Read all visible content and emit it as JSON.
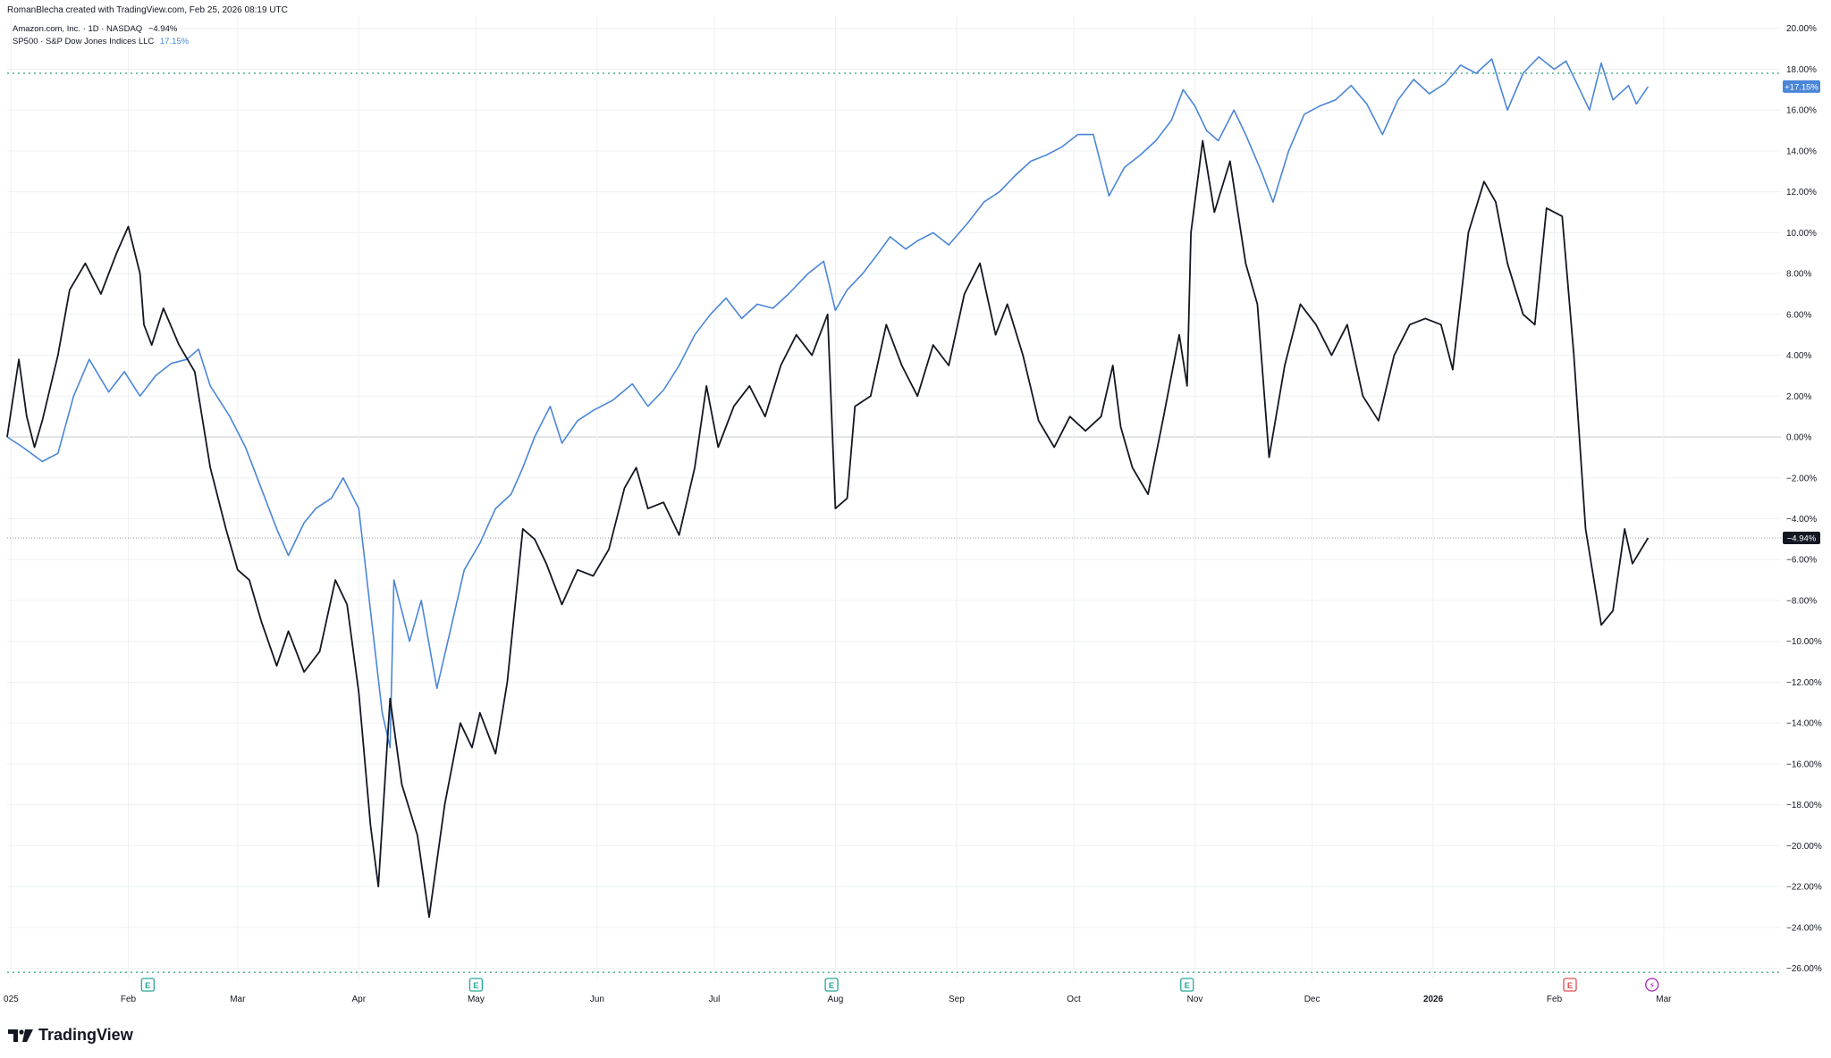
{
  "header": {
    "attribution": "RomanBlecha created with TradingView.com, Feb 25, 2026 08:19 UTC"
  },
  "legend": {
    "amzn_label": "Amazon.com, Inc. · 1D · NASDAQ",
    "amzn_value": "−4.94%",
    "spx_label": "SP500 · S&P Dow Jones Indices LLC",
    "spx_value": "17.15%"
  },
  "branding": {
    "name": "TradingView"
  },
  "colors": {
    "amzn": "#131722",
    "spx": "#4a86d8",
    "grid": "#eef0f3",
    "zero": "#c5c8ce",
    "level": "#27a26e",
    "earnings_past": "#26a69a",
    "earnings_future": "#e04c54",
    "dividend": "#9c27b0"
  },
  "chart_data": {
    "type": "line",
    "y_unit": "%",
    "ylim": [
      -26.5,
      20.6
    ],
    "yticks": [
      "20.00%",
      "18.00%",
      "16.00%",
      "14.00%",
      "12.00%",
      "10.00%",
      "8.00%",
      "6.00%",
      "4.00%",
      "2.00%",
      "0.00%",
      "−2.00%",
      "−4.00%",
      "−6.00%",
      "−8.00%",
      "−10.00%",
      "−12.00%",
      "−14.00%",
      "−16.00%",
      "−18.00%",
      "−20.00%",
      "−22.00%",
      "−24.00%",
      "−26.00%"
    ],
    "ytick_values": [
      20,
      18,
      16,
      14,
      12,
      10,
      8,
      6,
      4,
      2,
      0,
      -2,
      -4,
      -6,
      -8,
      -10,
      -12,
      -14,
      -16,
      -18,
      -20,
      -22,
      -24,
      -26
    ],
    "x_labels": [
      {
        "label": "025",
        "date": "2025-01-02"
      },
      {
        "label": "Feb",
        "date": "2025-02-01"
      },
      {
        "label": "Mar",
        "date": "2025-03-01"
      },
      {
        "label": "Apr",
        "date": "2025-04-01"
      },
      {
        "label": "May",
        "date": "2025-05-01"
      },
      {
        "label": "Jun",
        "date": "2025-06-01"
      },
      {
        "label": "Jul",
        "date": "2025-07-01"
      },
      {
        "label": "Aug",
        "date": "2025-08-01"
      },
      {
        "label": "Sep",
        "date": "2025-09-01"
      },
      {
        "label": "Oct",
        "date": "2025-10-01"
      },
      {
        "label": "Nov",
        "date": "2025-11-01"
      },
      {
        "label": "Dec",
        "date": "2025-12-01"
      },
      {
        "label": "2026",
        "date": "2026-01-01"
      },
      {
        "label": "Feb",
        "date": "2026-02-01"
      },
      {
        "label": "Mar",
        "date": "2026-03-01"
      }
    ],
    "x_range": [
      "2025-01-01",
      "2026-03-31"
    ],
    "grid": true,
    "level_lines": [
      17.8,
      -26.2
    ],
    "markers": [
      {
        "date": "2025-02-06",
        "type": "earnings",
        "label": "E"
      },
      {
        "date": "2025-05-01",
        "type": "earnings",
        "label": "E"
      },
      {
        "date": "2025-07-31",
        "type": "earnings",
        "label": "E"
      },
      {
        "date": "2025-10-30",
        "type": "earnings",
        "label": "E"
      },
      {
        "date": "2026-02-05",
        "type": "earnings",
        "label": "E"
      },
      {
        "date": "2026-02-26",
        "type": "dividend",
        "label": "⚡"
      }
    ],
    "series": [
      {
        "name": "SP500",
        "last_label": "+17.15%",
        "points": [
          [
            "2025-01-01",
            0
          ],
          [
            "2025-01-05",
            -0.5
          ],
          [
            "2025-01-10",
            -1.2
          ],
          [
            "2025-01-14",
            -0.8
          ],
          [
            "2025-01-18",
            2.0
          ],
          [
            "2025-01-22",
            3.8
          ],
          [
            "2025-01-27",
            2.2
          ],
          [
            "2025-01-31",
            3.2
          ],
          [
            "2025-02-04",
            2.0
          ],
          [
            "2025-02-08",
            3.0
          ],
          [
            "2025-02-12",
            3.6
          ],
          [
            "2025-02-16",
            3.8
          ],
          [
            "2025-02-19",
            4.3
          ],
          [
            "2025-02-22",
            2.5
          ],
          [
            "2025-02-27",
            1.0
          ],
          [
            "2025-03-03",
            -0.5
          ],
          [
            "2025-03-07",
            -2.5
          ],
          [
            "2025-03-11",
            -4.5
          ],
          [
            "2025-03-14",
            -5.8
          ],
          [
            "2025-03-18",
            -4.2
          ],
          [
            "2025-03-21",
            -3.5
          ],
          [
            "2025-03-25",
            -3.0
          ],
          [
            "2025-03-28",
            -2.0
          ],
          [
            "2025-04-01",
            -3.5
          ],
          [
            "2025-04-04",
            -8.5
          ],
          [
            "2025-04-07",
            -13.5
          ],
          [
            "2025-04-09",
            -15.2
          ],
          [
            "2025-04-10",
            -7.0
          ],
          [
            "2025-04-14",
            -10.0
          ],
          [
            "2025-04-17",
            -8.0
          ],
          [
            "2025-04-21",
            -12.3
          ],
          [
            "2025-04-25",
            -9.0
          ],
          [
            "2025-04-28",
            -6.5
          ],
          [
            "2025-05-02",
            -5.2
          ],
          [
            "2025-05-06",
            -3.5
          ],
          [
            "2025-05-10",
            -2.8
          ],
          [
            "2025-05-13",
            -1.5
          ],
          [
            "2025-05-16",
            0.0
          ],
          [
            "2025-05-20",
            1.5
          ],
          [
            "2025-05-23",
            -0.3
          ],
          [
            "2025-05-27",
            0.8
          ],
          [
            "2025-05-31",
            1.3
          ],
          [
            "2025-06-05",
            1.8
          ],
          [
            "2025-06-10",
            2.6
          ],
          [
            "2025-06-14",
            1.5
          ],
          [
            "2025-06-18",
            2.3
          ],
          [
            "2025-06-22",
            3.5
          ],
          [
            "2025-06-26",
            5.0
          ],
          [
            "2025-06-30",
            6.0
          ],
          [
            "2025-07-04",
            6.8
          ],
          [
            "2025-07-08",
            5.8
          ],
          [
            "2025-07-12",
            6.5
          ],
          [
            "2025-07-16",
            6.3
          ],
          [
            "2025-07-20",
            7.0
          ],
          [
            "2025-07-25",
            8.0
          ],
          [
            "2025-07-29",
            8.6
          ],
          [
            "2025-08-01",
            6.2
          ],
          [
            "2025-08-04",
            7.2
          ],
          [
            "2025-08-08",
            8.0
          ],
          [
            "2025-08-12",
            9.0
          ],
          [
            "2025-08-15",
            9.8
          ],
          [
            "2025-08-19",
            9.2
          ],
          [
            "2025-08-22",
            9.6
          ],
          [
            "2025-08-26",
            10.0
          ],
          [
            "2025-08-30",
            9.4
          ],
          [
            "2025-09-04",
            10.5
          ],
          [
            "2025-09-08",
            11.5
          ],
          [
            "2025-09-12",
            12.0
          ],
          [
            "2025-09-16",
            12.8
          ],
          [
            "2025-09-20",
            13.5
          ],
          [
            "2025-09-24",
            13.8
          ],
          [
            "2025-09-28",
            14.2
          ],
          [
            "2025-10-02",
            14.8
          ],
          [
            "2025-10-06",
            14.8
          ],
          [
            "2025-10-10",
            11.8
          ],
          [
            "2025-10-14",
            13.2
          ],
          [
            "2025-10-18",
            13.8
          ],
          [
            "2025-10-22",
            14.5
          ],
          [
            "2025-10-26",
            15.5
          ],
          [
            "2025-10-29",
            17.0
          ],
          [
            "2025-11-01",
            16.2
          ],
          [
            "2025-11-04",
            15.0
          ],
          [
            "2025-11-07",
            14.5
          ],
          [
            "2025-11-11",
            16.0
          ],
          [
            "2025-11-14",
            14.8
          ],
          [
            "2025-11-18",
            13.0
          ],
          [
            "2025-11-21",
            11.5
          ],
          [
            "2025-11-25",
            14.0
          ],
          [
            "2025-11-29",
            15.8
          ],
          [
            "2025-12-03",
            16.2
          ],
          [
            "2025-12-07",
            16.5
          ],
          [
            "2025-12-11",
            17.2
          ],
          [
            "2025-12-15",
            16.3
          ],
          [
            "2025-12-19",
            14.8
          ],
          [
            "2025-12-23",
            16.5
          ],
          [
            "2025-12-27",
            17.5
          ],
          [
            "2025-12-31",
            16.8
          ],
          [
            "2026-01-04",
            17.3
          ],
          [
            "2026-01-08",
            18.2
          ],
          [
            "2026-01-12",
            17.8
          ],
          [
            "2026-01-16",
            18.5
          ],
          [
            "2026-01-20",
            16.0
          ],
          [
            "2026-01-24",
            17.8
          ],
          [
            "2026-01-28",
            18.6
          ],
          [
            "2026-02-01",
            18.0
          ],
          [
            "2026-02-04",
            18.4
          ],
          [
            "2026-02-07",
            17.2
          ],
          [
            "2026-02-10",
            16.0
          ],
          [
            "2026-02-13",
            18.3
          ],
          [
            "2026-02-16",
            16.5
          ],
          [
            "2026-02-20",
            17.2
          ],
          [
            "2026-02-22",
            16.3
          ],
          [
            "2026-02-25",
            17.15
          ]
        ]
      },
      {
        "name": "Amazon.com, Inc.",
        "last_label": "−4.94%",
        "points": [
          [
            "2025-01-01",
            0
          ],
          [
            "2025-01-04",
            3.8
          ],
          [
            "2025-01-06",
            1.0
          ],
          [
            "2025-01-08",
            -0.5
          ],
          [
            "2025-01-10",
            0.8
          ],
          [
            "2025-01-14",
            4.0
          ],
          [
            "2025-01-17",
            7.2
          ],
          [
            "2025-01-21",
            8.5
          ],
          [
            "2025-01-25",
            7.0
          ],
          [
            "2025-01-29",
            9.0
          ],
          [
            "2025-02-01",
            10.3
          ],
          [
            "2025-02-04",
            8.0
          ],
          [
            "2025-02-05",
            5.5
          ],
          [
            "2025-02-07",
            4.5
          ],
          [
            "2025-02-10",
            6.3
          ],
          [
            "2025-02-14",
            4.5
          ],
          [
            "2025-02-18",
            3.2
          ],
          [
            "2025-02-22",
            -1.5
          ],
          [
            "2025-02-26",
            -4.5
          ],
          [
            "2025-03-01",
            -6.5
          ],
          [
            "2025-03-04",
            -7.0
          ],
          [
            "2025-03-07",
            -9.0
          ],
          [
            "2025-03-11",
            -11.2
          ],
          [
            "2025-03-14",
            -9.5
          ],
          [
            "2025-03-18",
            -11.5
          ],
          [
            "2025-03-22",
            -10.5
          ],
          [
            "2025-03-26",
            -7.0
          ],
          [
            "2025-03-29",
            -8.2
          ],
          [
            "2025-04-01",
            -12.5
          ],
          [
            "2025-04-04",
            -19.0
          ],
          [
            "2025-04-06",
            -22.0
          ],
          [
            "2025-04-09",
            -12.8
          ],
          [
            "2025-04-12",
            -17.0
          ],
          [
            "2025-04-16",
            -19.5
          ],
          [
            "2025-04-19",
            -23.5
          ],
          [
            "2025-04-23",
            -18.0
          ],
          [
            "2025-04-27",
            -14.0
          ],
          [
            "2025-04-30",
            -15.2
          ],
          [
            "2025-05-02",
            -13.5
          ],
          [
            "2025-05-06",
            -15.5
          ],
          [
            "2025-05-09",
            -12.0
          ],
          [
            "2025-05-13",
            -4.5
          ],
          [
            "2025-05-16",
            -5.0
          ],
          [
            "2025-05-19",
            -6.2
          ],
          [
            "2025-05-23",
            -8.2
          ],
          [
            "2025-05-27",
            -6.5
          ],
          [
            "2025-05-31",
            -6.8
          ],
          [
            "2025-06-04",
            -5.5
          ],
          [
            "2025-06-08",
            -2.5
          ],
          [
            "2025-06-11",
            -1.5
          ],
          [
            "2025-06-14",
            -3.5
          ],
          [
            "2025-06-18",
            -3.2
          ],
          [
            "2025-06-22",
            -4.8
          ],
          [
            "2025-06-26",
            -1.5
          ],
          [
            "2025-06-29",
            2.5
          ],
          [
            "2025-07-02",
            -0.5
          ],
          [
            "2025-07-06",
            1.5
          ],
          [
            "2025-07-10",
            2.5
          ],
          [
            "2025-07-14",
            1.0
          ],
          [
            "2025-07-18",
            3.5
          ],
          [
            "2025-07-22",
            5.0
          ],
          [
            "2025-07-26",
            4.0
          ],
          [
            "2025-07-30",
            6.0
          ],
          [
            "2025-08-01",
            -3.5
          ],
          [
            "2025-08-04",
            -3.0
          ],
          [
            "2025-08-06",
            1.5
          ],
          [
            "2025-08-10",
            2.0
          ],
          [
            "2025-08-14",
            5.5
          ],
          [
            "2025-08-18",
            3.5
          ],
          [
            "2025-08-22",
            2.0
          ],
          [
            "2025-08-26",
            4.5
          ],
          [
            "2025-08-30",
            3.5
          ],
          [
            "2025-09-03",
            7.0
          ],
          [
            "2025-09-07",
            8.5
          ],
          [
            "2025-09-11",
            5.0
          ],
          [
            "2025-09-14",
            6.5
          ],
          [
            "2025-09-18",
            4.0
          ],
          [
            "2025-09-22",
            0.8
          ],
          [
            "2025-09-26",
            -0.5
          ],
          [
            "2025-09-30",
            1.0
          ],
          [
            "2025-10-04",
            0.3
          ],
          [
            "2025-10-08",
            1.0
          ],
          [
            "2025-10-11",
            3.5
          ],
          [
            "2025-10-13",
            0.5
          ],
          [
            "2025-10-16",
            -1.5
          ],
          [
            "2025-10-20",
            -2.8
          ],
          [
            "2025-10-24",
            1.0
          ],
          [
            "2025-10-28",
            5.0
          ],
          [
            "2025-10-30",
            2.5
          ],
          [
            "2025-10-31",
            10.0
          ],
          [
            "2025-11-03",
            14.5
          ],
          [
            "2025-11-06",
            11.0
          ],
          [
            "2025-11-10",
            13.5
          ],
          [
            "2025-11-14",
            8.5
          ],
          [
            "2025-11-17",
            6.5
          ],
          [
            "2025-11-20",
            -1.0
          ],
          [
            "2025-11-24",
            3.5
          ],
          [
            "2025-11-28",
            6.5
          ],
          [
            "2025-12-02",
            5.5
          ],
          [
            "2025-12-06",
            4.0
          ],
          [
            "2025-12-10",
            5.5
          ],
          [
            "2025-12-14",
            2.0
          ],
          [
            "2025-12-18",
            0.8
          ],
          [
            "2025-12-22",
            4.0
          ],
          [
            "2025-12-26",
            5.5
          ],
          [
            "2025-12-30",
            5.8
          ],
          [
            "2026-01-03",
            5.5
          ],
          [
            "2026-01-06",
            3.3
          ],
          [
            "2026-01-10",
            10.0
          ],
          [
            "2026-01-14",
            12.5
          ],
          [
            "2026-01-17",
            11.5
          ],
          [
            "2026-01-20",
            8.5
          ],
          [
            "2026-01-24",
            6.0
          ],
          [
            "2026-01-27",
            5.5
          ],
          [
            "2026-01-30",
            11.2
          ],
          [
            "2026-02-03",
            10.8
          ],
          [
            "2026-02-06",
            4.0
          ],
          [
            "2026-02-09",
            -4.5
          ],
          [
            "2026-02-13",
            -9.2
          ],
          [
            "2026-02-16",
            -8.5
          ],
          [
            "2026-02-19",
            -4.5
          ],
          [
            "2026-02-21",
            -6.2
          ],
          [
            "2026-02-25",
            -4.94
          ]
        ]
      }
    ]
  }
}
